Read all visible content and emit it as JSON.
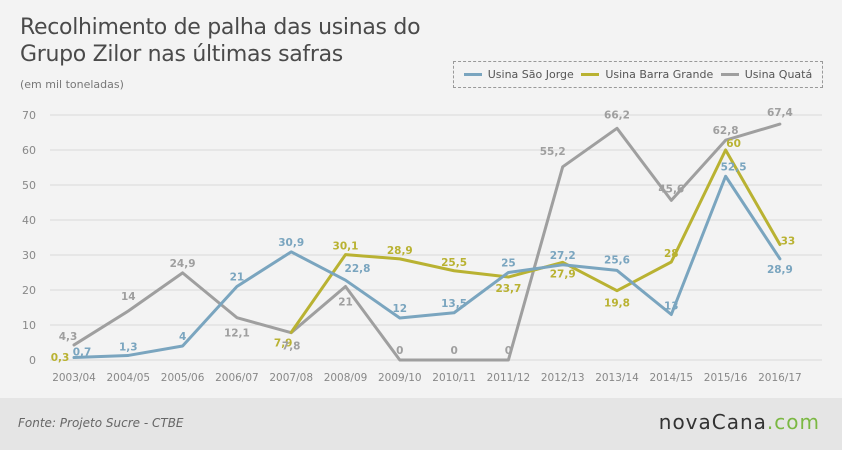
{
  "title_line1": "Recolhimento de palha das usinas do",
  "title_line2": "Grupo Zilor nas últimas safras",
  "subtitle": "(em mil toneladas)",
  "source": "Fonte: Projeto Sucre - CTBE",
  "brand": {
    "name": "novaCana",
    "tld": ".com",
    "tld_color": "#7bb843"
  },
  "chart_data": {
    "type": "line",
    "categories": [
      "2003/04",
      "2004/05",
      "2005/06",
      "2006/07",
      "2007/08",
      "2008/09",
      "2009/10",
      "2010/11",
      "2011/12",
      "2012/13",
      "2013/14",
      "2014/15",
      "2015/16",
      "2016/17"
    ],
    "ylim": [
      0,
      70
    ],
    "yticks": [
      0,
      10,
      20,
      30,
      40,
      50,
      60,
      70
    ],
    "grid": true,
    "legend_position": "top-right",
    "series": [
      {
        "name": "Usina São Jorge",
        "color": "#7aa5bf",
        "values": [
          0.7,
          1.3,
          4,
          21,
          30.9,
          22.8,
          12,
          13.5,
          25,
          27.2,
          25.6,
          13,
          52.5,
          28.9
        ],
        "labels": [
          "0,7",
          "1,3",
          "4",
          "21",
          "30,9",
          "22,8",
          "12",
          "13,5",
          "25",
          "27,2",
          "25,6",
          "13",
          "52,5",
          "28,9"
        ]
      },
      {
        "name": "Usina Barra Grande",
        "color": "#b9b232",
        "start_index": 4,
        "values": [
          null,
          null,
          null,
          null,
          7.9,
          30.1,
          28.9,
          25.5,
          23.7,
          27.9,
          19.8,
          28,
          60,
          33
        ],
        "labels": [
          null,
          null,
          null,
          null,
          "7,9",
          "30,1",
          "28,9",
          "25,5",
          "23,7",
          "27,9",
          "19,8",
          "28",
          "60",
          "33"
        ]
      },
      {
        "name": "Usina Quatá",
        "color": "#9f9f9f",
        "values": [
          4.3,
          14,
          24.9,
          12.1,
          7.8,
          21,
          0,
          0,
          0,
          55.2,
          66.2,
          45.6,
          62.8,
          67.4
        ],
        "labels": [
          "4,3",
          "14",
          "24,9",
          "12,1",
          "7,8",
          "21",
          "0",
          "0",
          "0",
          "55,2",
          "66,2",
          "45,6",
          "62,8",
          "67,4"
        ]
      }
    ],
    "extra_labels": [
      {
        "text": "0,3",
        "series": "Usina Barra Grande",
        "index": 0,
        "value": 0.3
      }
    ]
  }
}
